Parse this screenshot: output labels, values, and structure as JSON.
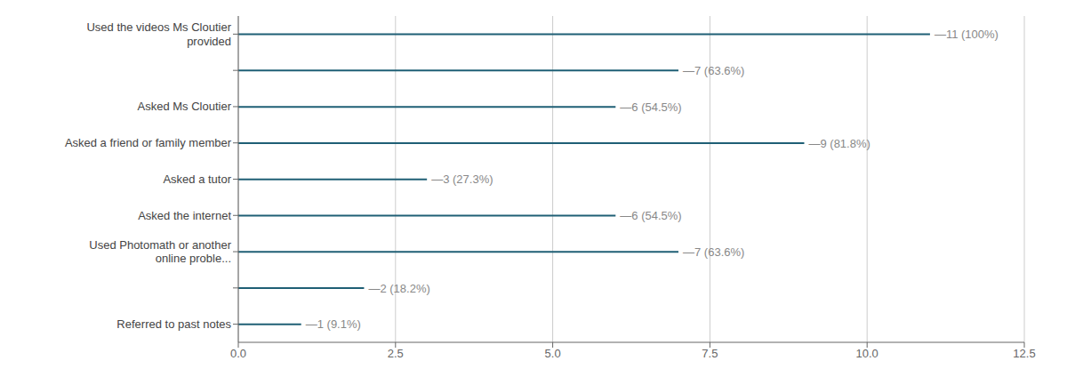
{
  "chart_data": {
    "type": "bar",
    "orientation": "horizontal",
    "categories": [
      "Referred to past notes",
      null,
      "Used Photomath or another\nonline proble...",
      "Asked the internet",
      "Asked a tutor",
      "Asked a friend or family member",
      "Asked Ms Cloutier",
      null,
      "Used the videos Ms Cloutier\nprovided"
    ],
    "values": [
      1,
      2,
      7,
      6,
      3,
      9,
      6,
      7,
      11
    ],
    "data_labels": true,
    "value_labels": [
      "—1 (9.1%)",
      "—2 (18.2%)",
      "—7 (63.6%)",
      "—6 (54.5%)",
      "—3 (27.3%)",
      "—9 (81.8%)",
      "—6 (54.5%)",
      "—7 (63.6%)",
      "—11 (100%)"
    ],
    "color": "#1f5f75",
    "xlim": [
      0,
      12.5
    ],
    "xticks": [
      {
        "value": 0,
        "label": "0.0"
      },
      2.5,
      {
        "value": 5,
        "label": "5.0"
      },
      7.5,
      {
        "value": 10,
        "label": "10.0"
      },
      12.5
    ],
    "grid": true
  }
}
